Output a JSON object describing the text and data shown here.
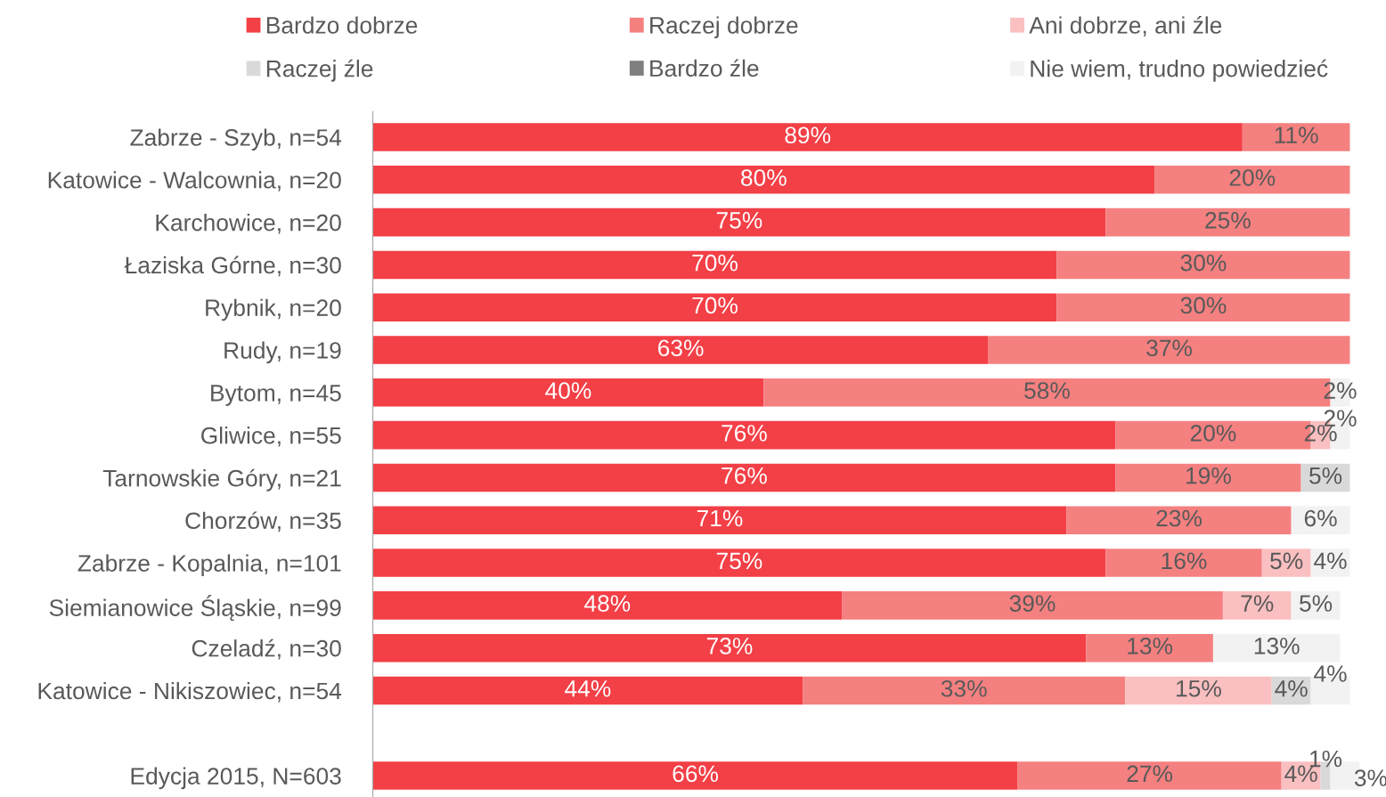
{
  "chart_data": {
    "type": "bar",
    "orientation": "horizontal",
    "stacked": true,
    "legend": "top",
    "tick_labels": "y",
    "xlim": [
      0,
      101
    ],
    "categories": [
      "Zabrze - Szyb, n=54",
      "Katowice - Walcownia, n=20",
      "Karchowice, n=20",
      "Łaziska Górne, n=30",
      "Rybnik, n=20",
      "Rudy, n=19",
      "Bytom, n=45",
      "Gliwice, n=55",
      "Tarnowskie Góry, n=21",
      "Chorzów, n=35",
      "Zabrze - Kopalnia, n=101",
      "Siemianowice Śląskie, n=99",
      "Czeladź, n=30",
      "Katowice - Nikiszowiec, n=54",
      null,
      "Edycja 2015, N=603"
    ],
    "series": [
      {
        "name": "Bardzo dobrze",
        "color": "#f33f46",
        "values": [
          89,
          80,
          75,
          70,
          70,
          63,
          40,
          76,
          76,
          71,
          75,
          48,
          73,
          44,
          null,
          66
        ],
        "value_labels": [
          "89%",
          "80%",
          "75%",
          "70%",
          "70%",
          "63%",
          "40%",
          "76%",
          "76%",
          "71%",
          "75%",
          "48%",
          "73%",
          "44%",
          null,
          "66%"
        ]
      },
      {
        "name": "Raczej dobrze",
        "color": "#f58080",
        "values": [
          11,
          20,
          25,
          30,
          30,
          37,
          58,
          20,
          19,
          23,
          16,
          39,
          13,
          33,
          null,
          27
        ],
        "value_labels": [
          "11%",
          "20%",
          "25%",
          "30%",
          "30%",
          "37%",
          "58%",
          "20%",
          "19%",
          "23%",
          "16%",
          "39%",
          "13%",
          "33%",
          null,
          "27%"
        ]
      },
      {
        "name": "Ani dobrze, ani źle",
        "color": "#fabfc0",
        "values": [
          0,
          0,
          0,
          0,
          0,
          0,
          0,
          2,
          0,
          0,
          5,
          7,
          0,
          15,
          null,
          4
        ],
        "value_labels": [
          null,
          null,
          null,
          null,
          null,
          null,
          null,
          "2%",
          null,
          null,
          "5%",
          "7%",
          null,
          "15%",
          null,
          "4%"
        ]
      },
      {
        "name": "Raczej źle",
        "color": "#d9d9d9",
        "values": [
          0,
          0,
          0,
          0,
          0,
          0,
          0,
          0,
          5,
          0,
          0,
          0,
          0,
          4,
          null,
          1
        ],
        "value_labels": [
          null,
          null,
          null,
          null,
          null,
          null,
          null,
          null,
          "5%",
          null,
          null,
          null,
          null,
          "4%",
          null,
          "1%"
        ]
      },
      {
        "name": "Bardzo źle",
        "color": "#7f7f7f",
        "values": [
          0,
          0,
          0,
          0,
          0,
          0,
          0,
          0,
          0,
          0,
          0,
          0,
          0,
          0,
          null,
          0
        ],
        "value_labels": [
          null,
          null,
          null,
          null,
          null,
          null,
          null,
          null,
          null,
          null,
          null,
          null,
          null,
          null,
          null,
          null
        ]
      },
      {
        "name": "Nie wiem, trudno powiedzieć",
        "color": "#f2f2f2",
        "values": [
          0,
          0,
          0,
          0,
          0,
          0,
          2,
          2,
          0,
          6,
          4,
          5,
          13,
          4,
          null,
          3
        ],
        "value_labels": [
          null,
          null,
          null,
          null,
          null,
          null,
          "2%",
          "2%",
          null,
          "6%",
          "4%",
          "5%",
          "13%",
          "4%",
          null,
          "3%"
        ]
      }
    ]
  }
}
